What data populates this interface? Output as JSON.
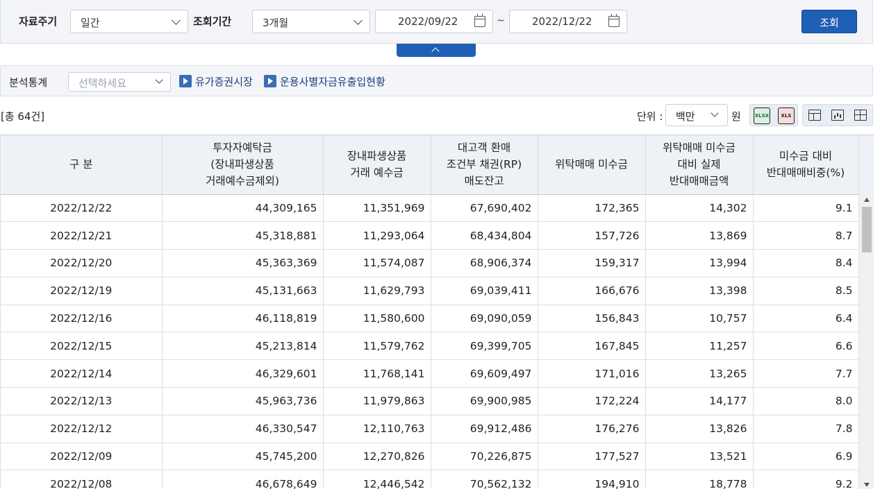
{
  "search": {
    "period_label": "자료주기",
    "period_value": "일간",
    "range_label": "조회기간",
    "range_value": "3개월",
    "start_date": "2022/09/22",
    "tilde": "~",
    "end_date": "2022/12/22",
    "search_button": "조회"
  },
  "analysis": {
    "label": "분석통계",
    "placeholder": "선택하세요",
    "link1": "유가증권시장",
    "link2": "운용사별자금유출입현황"
  },
  "toolbar": {
    "total": "[총 64건]",
    "unit_label": "단위 :",
    "unit_value": "백만",
    "won": "원",
    "xlsx_label": "XLSX",
    "xls_label": "XLS"
  },
  "table": {
    "headers": [
      [
        "구 분"
      ],
      [
        "투자자예탁금",
        "(장내파생상품",
        "거래예수금제외)"
      ],
      [
        "장내파생상품",
        "거래 예수금"
      ],
      [
        "대고객 환매",
        "조건부 채권(RP)",
        "매도잔고"
      ],
      [
        "위탁매매 미수금"
      ],
      [
        "위탁매매 미수금",
        "대비 실제",
        "반대매매금액"
      ],
      [
        "미수금 대비",
        "반대매매비중(%)"
      ]
    ],
    "rows": [
      [
        "2022/12/22",
        "44,309,165",
        "11,351,969",
        "67,690,402",
        "172,365",
        "14,302",
        "9.1"
      ],
      [
        "2022/12/21",
        "45,318,881",
        "11,293,064",
        "68,434,804",
        "157,726",
        "13,869",
        "8.7"
      ],
      [
        "2022/12/20",
        "45,363,369",
        "11,574,087",
        "68,906,374",
        "159,317",
        "13,994",
        "8.4"
      ],
      [
        "2022/12/19",
        "45,131,663",
        "11,629,793",
        "69,039,411",
        "166,676",
        "13,398",
        "8.5"
      ],
      [
        "2022/12/16",
        "46,118,819",
        "11,580,600",
        "69,090,059",
        "156,843",
        "10,757",
        "6.4"
      ],
      [
        "2022/12/15",
        "45,213,814",
        "11,579,762",
        "69,399,705",
        "167,845",
        "11,257",
        "6.6"
      ],
      [
        "2022/12/14",
        "46,329,601",
        "11,768,141",
        "69,609,497",
        "171,016",
        "13,265",
        "7.7"
      ],
      [
        "2022/12/13",
        "45,963,736",
        "11,979,863",
        "69,900,985",
        "172,224",
        "14,177",
        "8.0"
      ],
      [
        "2022/12/12",
        "46,330,547",
        "12,110,763",
        "69,912,486",
        "176,276",
        "13,826",
        "7.8"
      ],
      [
        "2022/12/09",
        "45,745,200",
        "12,270,826",
        "70,226,875",
        "177,527",
        "13,521",
        "6.9"
      ],
      [
        "2022/12/08",
        "46,678,649",
        "12,446,542",
        "70,562,132",
        "194,910",
        "18,778",
        "9.2"
      ]
    ]
  }
}
